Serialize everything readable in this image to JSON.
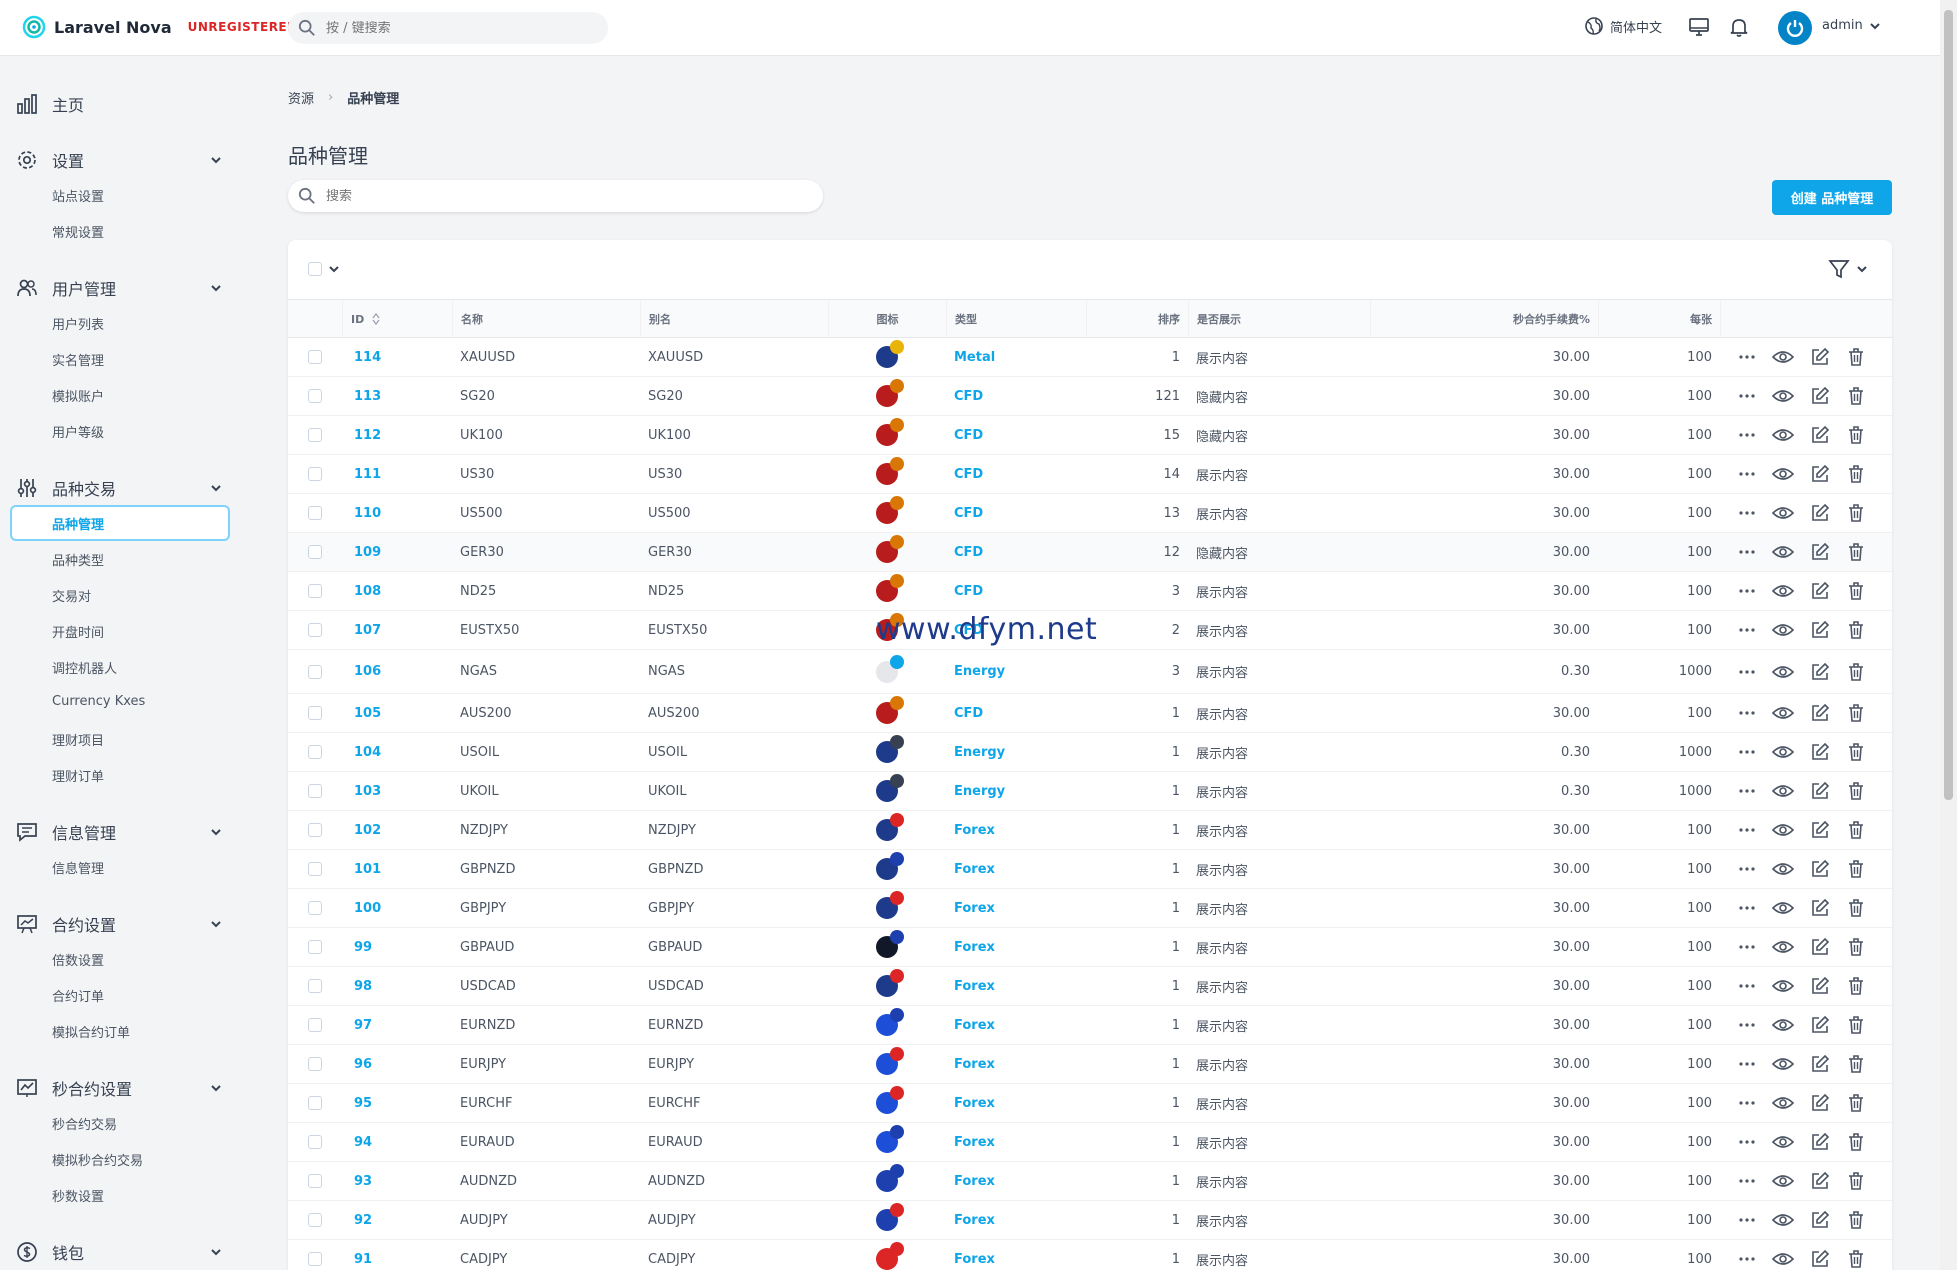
{
  "topbar": {
    "app_name": "Laravel Nova",
    "badge": "UNREGISTERED",
    "search_placeholder": "按 / 键搜索",
    "language": "简体中文",
    "user": "admin"
  },
  "sidebar": {
    "sections": [
      {
        "label": "主页",
        "icon": "chart-bar-icon",
        "items": []
      },
      {
        "label": "设置",
        "icon": "gear-icon",
        "items": [
          "站点设置",
          "常规设置"
        ]
      },
      {
        "label": "用户管理",
        "icon": "users-icon",
        "items": [
          "用户列表",
          "实名管理",
          "模拟账户",
          "用户等级"
        ]
      },
      {
        "label": "品种交易",
        "icon": "sliders-icon",
        "items": [
          "品种管理",
          "品种类型",
          "交易对",
          "开盘时间",
          "调控机器人",
          "Currency Kxes",
          "理财项目",
          "理财订单"
        ]
      },
      {
        "label": "信息管理",
        "icon": "chat-icon",
        "items": [
          "信息管理"
        ]
      },
      {
        "label": "合约设置",
        "icon": "presentation-icon",
        "items": [
          "倍数设置",
          "合约订单",
          "模拟合约订单"
        ]
      },
      {
        "label": "秒合约设置",
        "icon": "chart-line-icon",
        "items": [
          "秒合约交易",
          "模拟秒合约交易",
          "秒数设置"
        ]
      },
      {
        "label": "钱包",
        "icon": "dollar-icon",
        "items": []
      }
    ],
    "active_item": "品种管理"
  },
  "breadcrumb": {
    "root": "资源",
    "current": "品种管理"
  },
  "page": {
    "title": "品种管理",
    "search_placeholder": "搜索",
    "create_button": "创建 品种管理"
  },
  "table": {
    "headers": {
      "id": "ID",
      "name": "名称",
      "alias": "别名",
      "icon": "图标",
      "type": "类型",
      "sort": "排序",
      "show": "是否展示",
      "fee": "秒合约手续费%",
      "per": "每张"
    },
    "rows": [
      {
        "id": "114",
        "name": "XAUUSD",
        "alias": "XAUUSD",
        "type": "Metal",
        "sort": "1",
        "show": "展示内容",
        "fee": "30.00",
        "per": "100",
        "f1": "#1e3a8a",
        "f2": "#eab308"
      },
      {
        "id": "113",
        "name": "SG20",
        "alias": "SG20",
        "type": "CFD",
        "sort": "121",
        "show": "隐藏内容",
        "fee": "30.00",
        "per": "100",
        "f1": "#b91c1c",
        "f2": "#d97706"
      },
      {
        "id": "112",
        "name": "UK100",
        "alias": "UK100",
        "type": "CFD",
        "sort": "15",
        "show": "隐藏内容",
        "fee": "30.00",
        "per": "100",
        "f1": "#b91c1c",
        "f2": "#d97706"
      },
      {
        "id": "111",
        "name": "US30",
        "alias": "US30",
        "type": "CFD",
        "sort": "14",
        "show": "展示内容",
        "fee": "30.00",
        "per": "100",
        "f1": "#b91c1c",
        "f2": "#d97706"
      },
      {
        "id": "110",
        "name": "US500",
        "alias": "US500",
        "type": "CFD",
        "sort": "13",
        "show": "展示内容",
        "fee": "30.00",
        "per": "100",
        "f1": "#b91c1c",
        "f2": "#d97706"
      },
      {
        "id": "109",
        "name": "GER30",
        "alias": "GER30",
        "type": "CFD",
        "sort": "12",
        "show": "隐藏内容",
        "fee": "30.00",
        "per": "100",
        "f1": "#b91c1c",
        "f2": "#d97706"
      },
      {
        "id": "108",
        "name": "ND25",
        "alias": "ND25",
        "type": "CFD",
        "sort": "3",
        "show": "展示内容",
        "fee": "30.00",
        "per": "100",
        "f1": "#b91c1c",
        "f2": "#d97706"
      },
      {
        "id": "107",
        "name": "EUSTX50",
        "alias": "EUSTX50",
        "type": "CFD",
        "sort": "2",
        "show": "展示内容",
        "fee": "30.00",
        "per": "100",
        "f1": "#b91c1c",
        "f2": "#d97706"
      },
      {
        "id": "106",
        "name": "NGAS",
        "alias": "NGAS",
        "type": "Energy",
        "sort": "3",
        "show": "展示内容",
        "fee": "0.30",
        "per": "1000",
        "f1": "#e5e7eb",
        "f2": "#0ea5e9"
      },
      {
        "id": "105",
        "name": "AUS200",
        "alias": "AUS200",
        "type": "CFD",
        "sort": "1",
        "show": "展示内容",
        "fee": "30.00",
        "per": "100",
        "f1": "#b91c1c",
        "f2": "#d97706"
      },
      {
        "id": "104",
        "name": "USOIL",
        "alias": "USOIL",
        "type": "Energy",
        "sort": "1",
        "show": "展示内容",
        "fee": "0.30",
        "per": "1000",
        "f1": "#1e3a8a",
        "f2": "#374151"
      },
      {
        "id": "103",
        "name": "UKOIL",
        "alias": "UKOIL",
        "type": "Energy",
        "sort": "1",
        "show": "展示内容",
        "fee": "0.30",
        "per": "1000",
        "f1": "#1e3a8a",
        "f2": "#374151"
      },
      {
        "id": "102",
        "name": "NZDJPY",
        "alias": "NZDJPY",
        "type": "Forex",
        "sort": "1",
        "show": "展示内容",
        "fee": "30.00",
        "per": "100",
        "f1": "#1e3a8a",
        "f2": "#dc2626"
      },
      {
        "id": "101",
        "name": "GBPNZD",
        "alias": "GBPNZD",
        "type": "Forex",
        "sort": "1",
        "show": "展示内容",
        "fee": "30.00",
        "per": "100",
        "f1": "#1e3a8a",
        "f2": "#1e40af"
      },
      {
        "id": "100",
        "name": "GBPJPY",
        "alias": "GBPJPY",
        "type": "Forex",
        "sort": "1",
        "show": "展示内容",
        "fee": "30.00",
        "per": "100",
        "f1": "#1e3a8a",
        "f2": "#dc2626"
      },
      {
        "id": "99",
        "name": "GBPAUD",
        "alias": "GBPAUD",
        "type": "Forex",
        "sort": "1",
        "show": "展示内容",
        "fee": "30.00",
        "per": "100",
        "f1": "#111827",
        "f2": "#1e40af"
      },
      {
        "id": "98",
        "name": "USDCAD",
        "alias": "USDCAD",
        "type": "Forex",
        "sort": "1",
        "show": "展示内容",
        "fee": "30.00",
        "per": "100",
        "f1": "#1e3a8a",
        "f2": "#dc2626"
      },
      {
        "id": "97",
        "name": "EURNZD",
        "alias": "EURNZD",
        "type": "Forex",
        "sort": "1",
        "show": "展示内容",
        "fee": "30.00",
        "per": "100",
        "f1": "#1d4ed8",
        "f2": "#1e40af"
      },
      {
        "id": "96",
        "name": "EURJPY",
        "alias": "EURJPY",
        "type": "Forex",
        "sort": "1",
        "show": "展示内容",
        "fee": "30.00",
        "per": "100",
        "f1": "#1d4ed8",
        "f2": "#dc2626"
      },
      {
        "id": "95",
        "name": "EURCHF",
        "alias": "EURCHF",
        "type": "Forex",
        "sort": "1",
        "show": "展示内容",
        "fee": "30.00",
        "per": "100",
        "f1": "#1d4ed8",
        "f2": "#dc2626"
      },
      {
        "id": "94",
        "name": "EURAUD",
        "alias": "EURAUD",
        "type": "Forex",
        "sort": "1",
        "show": "展示内容",
        "fee": "30.00",
        "per": "100",
        "f1": "#1d4ed8",
        "f2": "#1e40af"
      },
      {
        "id": "93",
        "name": "AUDNZD",
        "alias": "AUDNZD",
        "type": "Forex",
        "sort": "1",
        "show": "展示内容",
        "fee": "30.00",
        "per": "100",
        "f1": "#1e40af",
        "f2": "#1e40af"
      },
      {
        "id": "92",
        "name": "AUDJPY",
        "alias": "AUDJPY",
        "type": "Forex",
        "sort": "1",
        "show": "展示内容",
        "fee": "30.00",
        "per": "100",
        "f1": "#1e40af",
        "f2": "#dc2626"
      },
      {
        "id": "91",
        "name": "CADJPY",
        "alias": "CADJPY",
        "type": "Forex",
        "sort": "1",
        "show": "展示内容",
        "fee": "30.00",
        "per": "100",
        "f1": "#dc2626",
        "f2": "#dc2626"
      }
    ]
  },
  "watermark": "www.dfym.net",
  "colors": {
    "accent": "#0ea5e9",
    "unregistered": "#dc2626"
  }
}
